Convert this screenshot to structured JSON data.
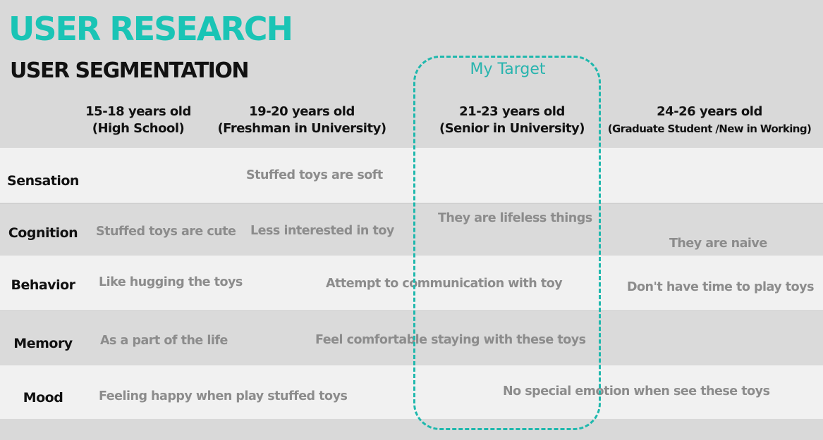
{
  "title": "USER RESEARCH",
  "subtitle": "USER SEGMENTATION",
  "target_label": "My Target",
  "columns": [
    {
      "age": "15-18 years old",
      "group": "(High School)"
    },
    {
      "age": "19-20 years old",
      "group": "(Freshman in University)"
    },
    {
      "age": "21-23 years old",
      "group": "(Senior in University)"
    },
    {
      "age": "24-26 years old",
      "group": "(Graduate Student /New in Working)"
    }
  ],
  "rows": [
    {
      "label": "Sensation",
      "cells": [
        "Stuffed toys are soft"
      ]
    },
    {
      "label": "Cognition",
      "cells": [
        "Stuffed toys are cute",
        "Less interested in toy",
        "They are lifeless things",
        "They are naive"
      ]
    },
    {
      "label": "Behavior",
      "cells": [
        "Like hugging the toys",
        "Attempt to communication with toy",
        "Don't have time to play toys"
      ]
    },
    {
      "label": "Memory",
      "cells": [
        "As a part of the life",
        "Feel comfortable staying with these toys"
      ]
    },
    {
      "label": "Mood",
      "cells": [
        "Feeling happy when play stuffed toys",
        "No special emotion when see these toys"
      ]
    }
  ],
  "colors": {
    "accent": "#1ac4b5",
    "dashed_outline": "#1fb8ad"
  }
}
